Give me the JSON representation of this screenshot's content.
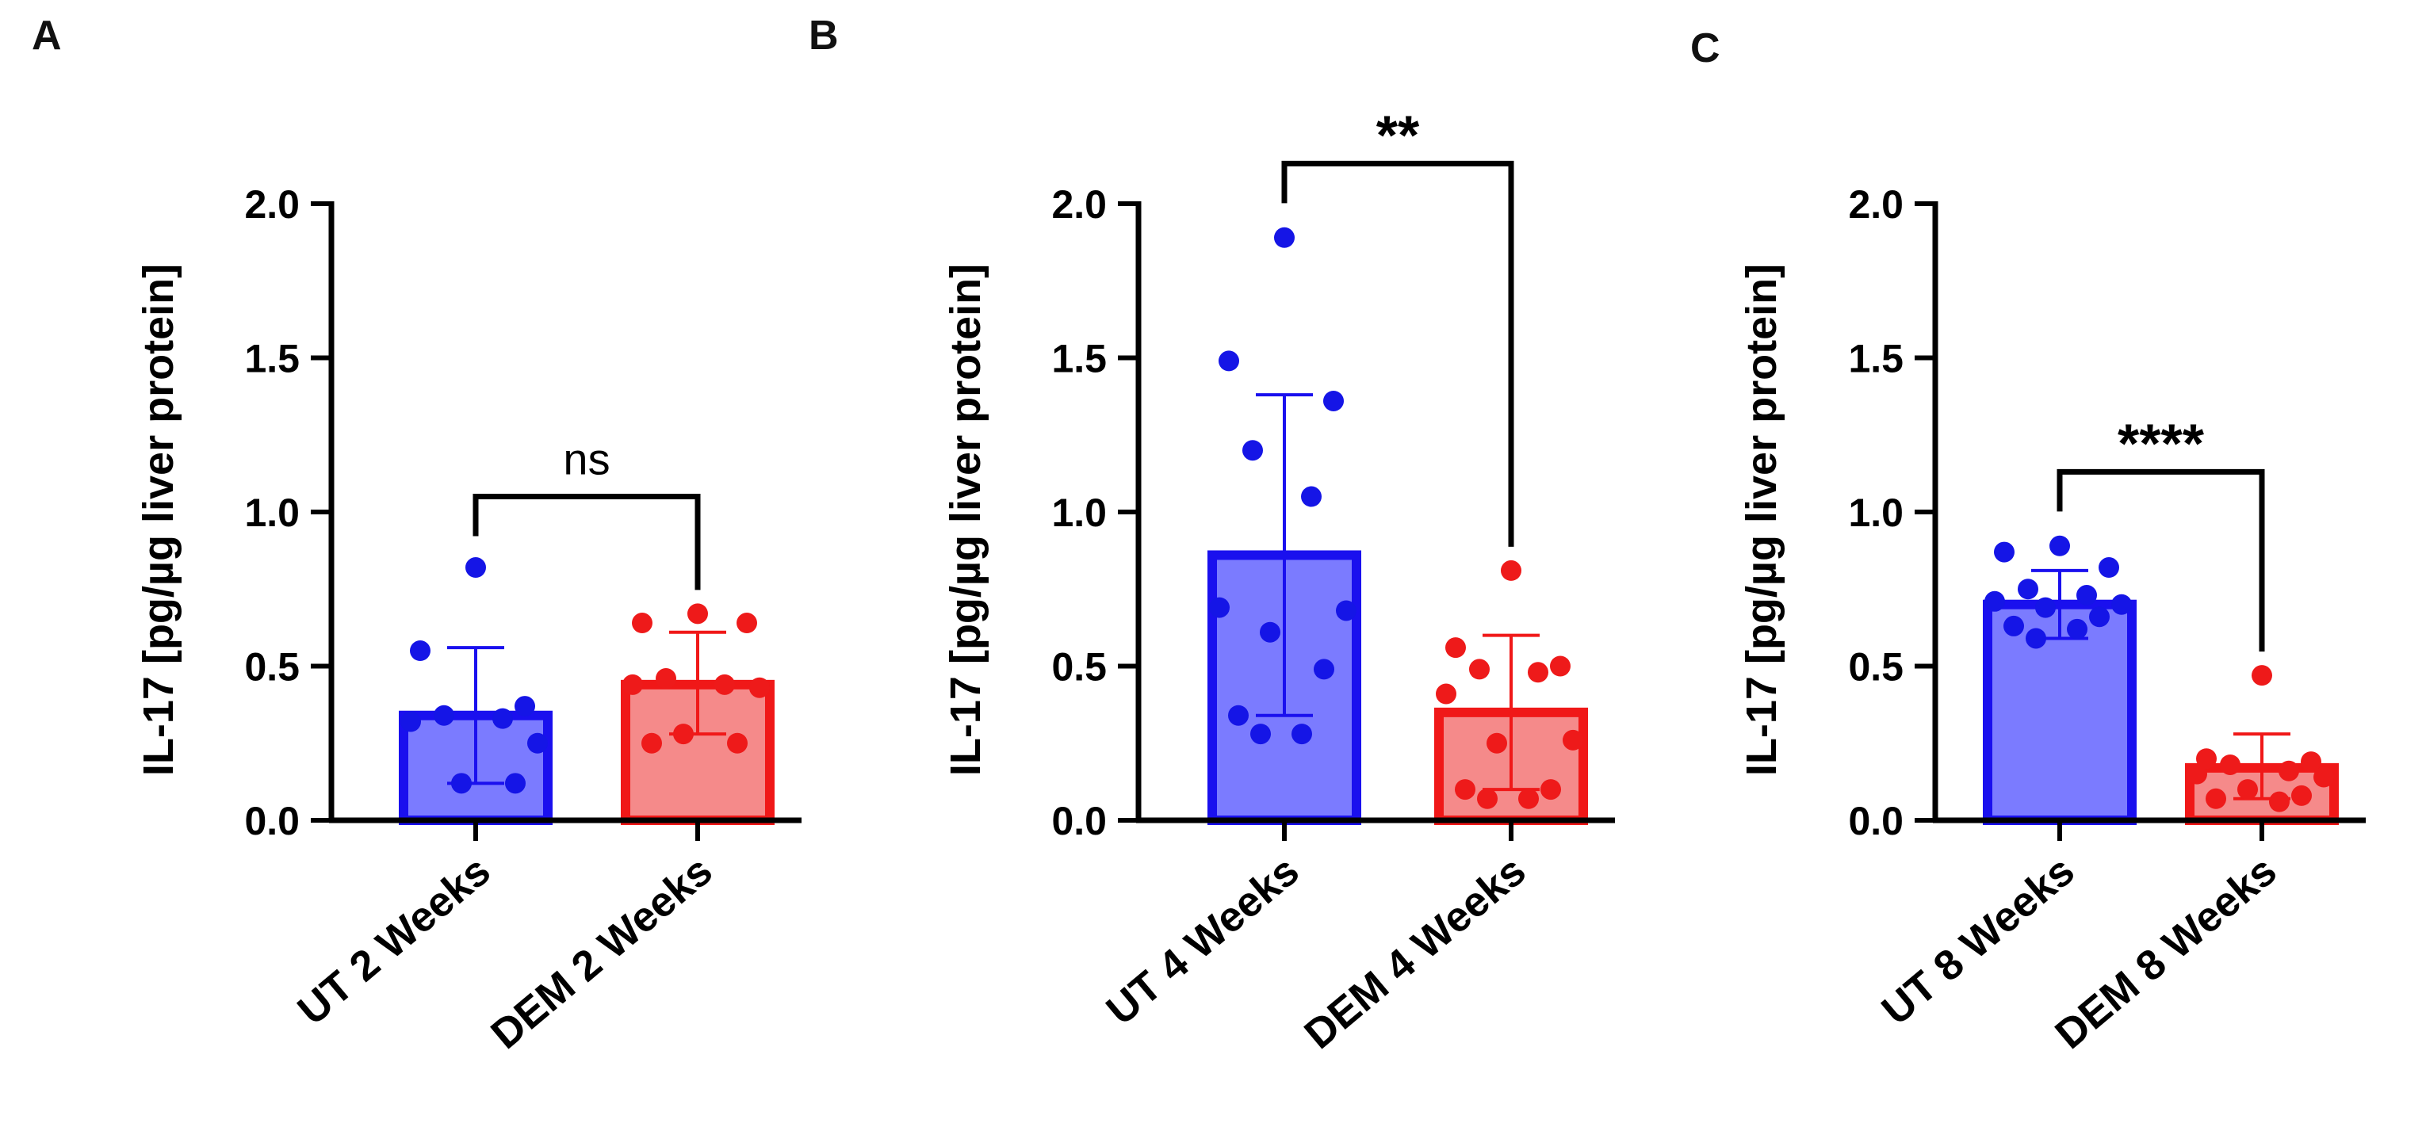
{
  "figure": {
    "description": "Bar charts of IL-17 in liver tissue after 2, 4 and 8 weeks"
  },
  "colors": {
    "ut_fill": "#7b7bff",
    "ut_stroke": "#1a10ee",
    "ut_dot": "#1515e6",
    "dem_fill": "#f58a8a",
    "dem_stroke": "#f01818",
    "dem_dot": "#ee1a1a",
    "axis": "#000000"
  },
  "chart_data": [
    {
      "panel": "A",
      "type": "bar",
      "ylabel": "IL-17 [pg/µg liver protein]",
      "ylim": [
        0,
        2.0
      ],
      "yticks": [
        "0.0",
        "0.5",
        "1.0",
        "1.5",
        "2.0"
      ],
      "categories": [
        "UT 2 Weeks",
        "DEM 2 Weeks"
      ],
      "groups": [
        {
          "name": "UT 2 Weeks",
          "mean": 0.34,
          "sd_low": 0.12,
          "sd_high": 0.56,
          "points": [
            0.82,
            0.55,
            0.37,
            0.34,
            0.33,
            0.32,
            0.25,
            0.12,
            0.12
          ]
        },
        {
          "name": "DEM 2 Weeks",
          "mean": 0.44,
          "sd_low": 0.28,
          "sd_high": 0.61,
          "points": [
            0.67,
            0.64,
            0.64,
            0.46,
            0.44,
            0.44,
            0.43,
            0.28,
            0.25,
            0.25
          ]
        }
      ],
      "significance": "ns",
      "sig_bracket_y": 1.05
    },
    {
      "panel": "B",
      "type": "bar",
      "ylabel": "IL-17 [pg/µg liver protein]",
      "ylim": [
        0,
        2.0
      ],
      "yticks": [
        "0.0",
        "0.5",
        "1.0",
        "1.5",
        "2.0"
      ],
      "categories": [
        "UT 4 Weeks",
        "DEM 4 Weeks"
      ],
      "groups": [
        {
          "name": "UT 4 Weeks",
          "mean": 0.86,
          "sd_low": 0.34,
          "sd_high": 1.38,
          "points": [
            1.89,
            1.49,
            1.36,
            1.2,
            1.05,
            0.69,
            0.68,
            0.61,
            0.49,
            0.34,
            0.28,
            0.28
          ]
        },
        {
          "name": "DEM 4 Weeks",
          "mean": 0.35,
          "sd_low": 0.1,
          "sd_high": 0.6,
          "points": [
            0.81,
            0.56,
            0.5,
            0.49,
            0.48,
            0.41,
            0.26,
            0.25,
            0.1,
            0.1,
            0.07,
            0.07
          ]
        }
      ],
      "significance": "**",
      "sig_bracket_y": 2.13
    },
    {
      "panel": "C",
      "type": "bar",
      "ylabel": "IL-17 [pg/µg liver protein]",
      "ylim": [
        0,
        2.0
      ],
      "yticks": [
        "0.0",
        "0.5",
        "1.0",
        "1.5",
        "2.0"
      ],
      "categories": [
        "UT 8 Weeks",
        "DEM 8 Weeks"
      ],
      "groups": [
        {
          "name": "UT 8 Weeks",
          "mean": 0.7,
          "sd_low": 0.59,
          "sd_high": 0.81,
          "points": [
            0.89,
            0.87,
            0.82,
            0.75,
            0.73,
            0.71,
            0.7,
            0.69,
            0.66,
            0.63,
            0.62,
            0.59
          ]
        },
        {
          "name": "DEM 8 Weeks",
          "mean": 0.17,
          "sd_low": 0.07,
          "sd_high": 0.28,
          "points": [
            0.47,
            0.2,
            0.19,
            0.18,
            0.16,
            0.15,
            0.14,
            0.1,
            0.08,
            0.07,
            0.06
          ]
        }
      ],
      "significance": "****",
      "sig_bracket_y": 1.13
    }
  ]
}
